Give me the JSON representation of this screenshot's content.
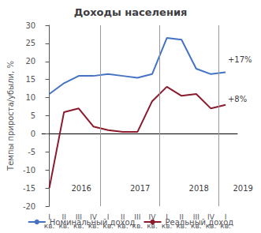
{
  "chart_data": {
    "type": "line",
    "title": "Доходы населения",
    "y_label": "Темпы прироста/убыли, %",
    "categories": [
      "I\nкв.",
      "II\nкв.",
      "III\nкв.",
      "IV\nкв.",
      "I\nкв.",
      "II\nкв.",
      "III\nкв.",
      "IV\nкв.",
      "I\nкв.",
      "II\nкв.",
      "III\nкв.",
      "IV\nкв.",
      "I\nкв."
    ],
    "series": [
      {
        "name": "Номинальный доход",
        "color": "#4472c4",
        "values": [
          11,
          14,
          16,
          16,
          16.5,
          16,
          15.5,
          16.5,
          26.5,
          26,
          18,
          16.5,
          17
        ]
      },
      {
        "name": "Реальный доход",
        "color": "#8b1a2d",
        "values": [
          -15,
          6,
          7,
          2,
          1,
          0.5,
          0.5,
          9,
          13,
          10.5,
          11,
          7,
          8
        ]
      }
    ],
    "xlim": [
      -0.5,
      12.8
    ],
    "ylim": [
      -20,
      30
    ],
    "yticks": [
      -20,
      -15,
      -10,
      -5,
      0,
      5,
      10,
      15,
      20,
      25,
      30
    ],
    "grid": false,
    "legend": "bottom",
    "vlines": [
      3.5,
      7.5,
      11.5
    ],
    "annotations": [
      {
        "text": "+17%",
        "x": 12.15,
        "y": 20.5
      },
      {
        "text": "+8%",
        "x": 12.15,
        "y": 9.5
      },
      {
        "text": "2016",
        "x": 1.5,
        "y": -15
      },
      {
        "text": "2017",
        "x": 5.5,
        "y": -15
      },
      {
        "text": "2018",
        "x": 9.5,
        "y": -15
      },
      {
        "text": "2019",
        "x": 12.5,
        "y": -15
      }
    ]
  }
}
